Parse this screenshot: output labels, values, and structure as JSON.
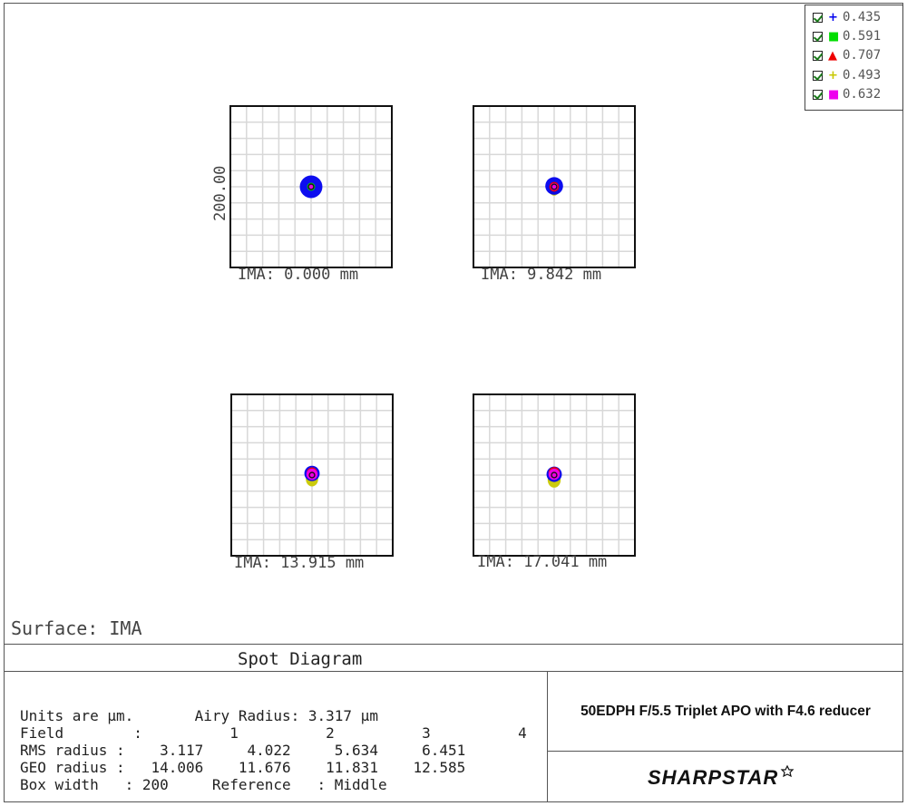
{
  "chart_data": {
    "type": "scatter",
    "title": "Spot Diagram",
    "units": "µm",
    "box_width": 200,
    "y_scale_label": "200.00",
    "fields": [
      {
        "label": "IMA: 0.000 mm",
        "rms_radius": 3.117,
        "geo_radius": 14.006,
        "spots": [
          {
            "wl": "0.435",
            "x": 0,
            "y": 0,
            "r": 14.0
          },
          {
            "wl": "0.591",
            "x": 0,
            "y": 0,
            "r": 5.0
          },
          {
            "wl": "0.632",
            "x": 0,
            "y": 0,
            "r": 3.0
          }
        ]
      },
      {
        "label": "IMA: 9.842 mm",
        "rms_radius": 4.022,
        "geo_radius": 11.676,
        "spots": [
          {
            "wl": "0.493",
            "x": 0,
            "y": -4,
            "r": 7.0
          },
          {
            "wl": "0.435",
            "x": 0,
            "y": 1,
            "r": 11.0
          },
          {
            "wl": "0.707",
            "x": 0,
            "y": 0,
            "r": 6.0
          },
          {
            "wl": "0.632",
            "x": 0,
            "y": 0,
            "r": 4.5
          }
        ]
      },
      {
        "label": "IMA: 13.915 mm",
        "rms_radius": 5.634,
        "geo_radius": 11.831,
        "spots": [
          {
            "wl": "0.493",
            "x": 0,
            "y": -5,
            "r": 9.0
          },
          {
            "wl": "0.435",
            "x": 0,
            "y": 2,
            "r": 9.5
          },
          {
            "wl": "0.707",
            "x": 0,
            "y": 3,
            "r": 6.5
          },
          {
            "wl": "0.632",
            "x": 0,
            "y": 1,
            "r": 7.0
          }
        ]
      },
      {
        "label": "IMA: 17.041 mm",
        "rms_radius": 6.451,
        "geo_radius": 12.585,
        "spots": [
          {
            "wl": "0.493",
            "x": 0,
            "y": -6,
            "r": 9.5
          },
          {
            "wl": "0.435",
            "x": 0,
            "y": 1,
            "r": 9.5
          },
          {
            "wl": "0.707",
            "x": 0,
            "y": 3,
            "r": 7.0
          },
          {
            "wl": "0.632",
            "x": 0,
            "y": 1,
            "r": 7.0
          }
        ]
      }
    ]
  },
  "legend": [
    {
      "wavelength": "0.435",
      "symbol": "+",
      "color": "#0000ee"
    },
    {
      "wavelength": "0.591",
      "symbol": "■",
      "color": "#00dd00"
    },
    {
      "wavelength": "0.707",
      "symbol": "▲",
      "color": "#ee0000"
    },
    {
      "wavelength": "0.493",
      "symbol": "+",
      "color": "#c8c800"
    },
    {
      "wavelength": "0.632",
      "symbol": "■",
      "color": "#ee00ee"
    }
  ],
  "surface": "Surface: IMA",
  "diagram_title": "Spot Diagram",
  "stats": {
    "line1": "Units are µm.       Airy Radius: 3.317 µm",
    "line2": "Field        :          1          2          3          4",
    "line3": "RMS radius :    3.117     4.022     5.634     6.451",
    "line4": "GEO radius :   14.006    11.676    11.831    12.585",
    "line5": "Box width   : 200     Reference   : Middle"
  },
  "description": "50EDPH F/5.5 Triplet APO with F4.6 reducer",
  "logo_text": "SHARPSTAR"
}
